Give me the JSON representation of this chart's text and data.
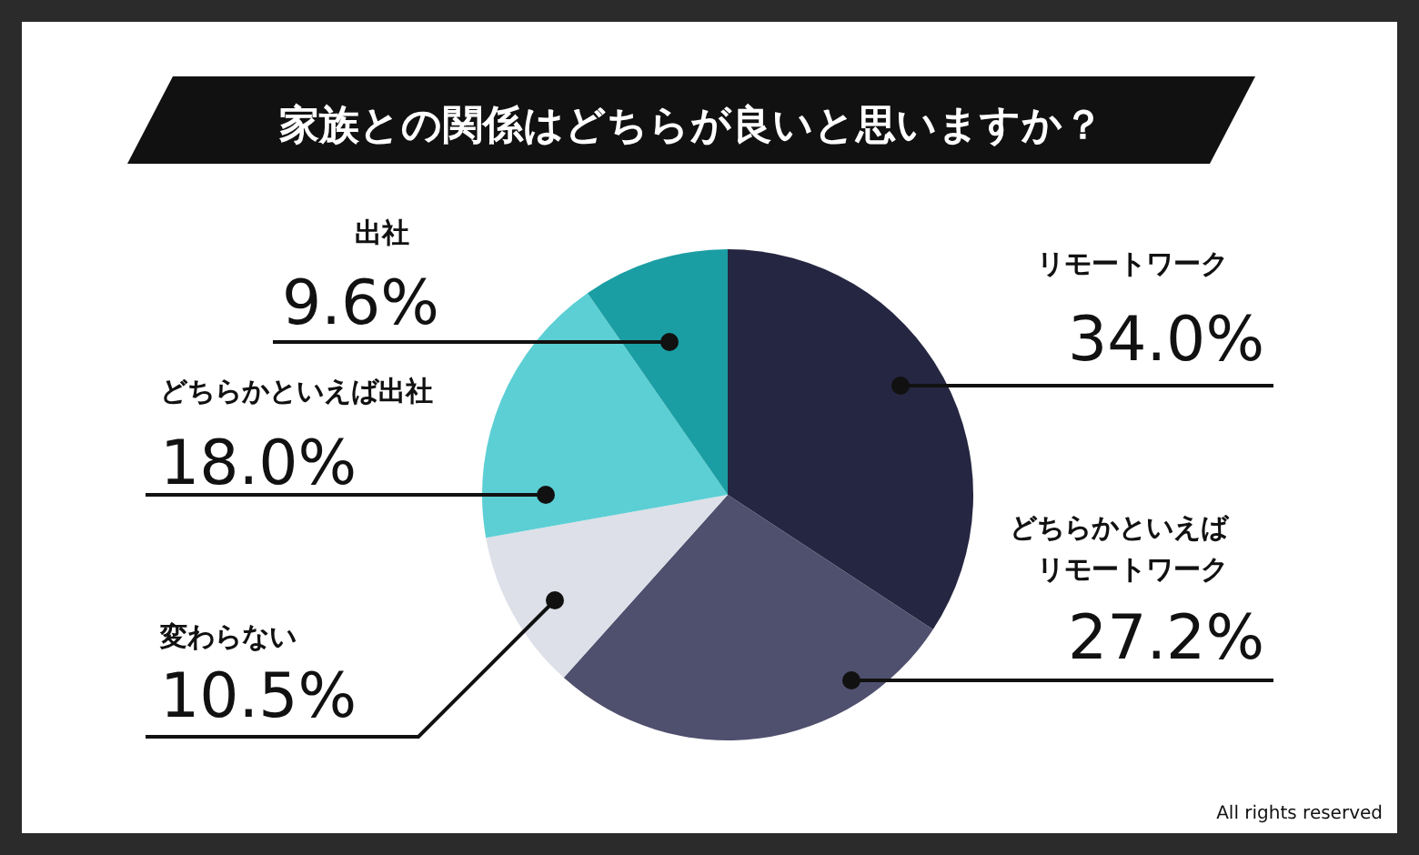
{
  "chart_data": {
    "type": "pie",
    "title": "家族との関係はどちらが良いと思いますか？",
    "categories": [
      "リモートワーク",
      "どちらかといえばリモートワーク",
      "変わらない",
      "どちらかといえば出社",
      "出社"
    ],
    "values": [
      34.0,
      27.2,
      10.5,
      18.0,
      9.6
    ],
    "colors": [
      "#252641",
      "#4f4f6e",
      "#dde0e8",
      "#5ccfd4",
      "#1a9ea3"
    ],
    "value_labels": [
      "34.0%",
      "27.2%",
      "10.5%",
      "18.0%",
      "9.6%"
    ],
    "annotations": [
      "All rights reserved"
    ]
  }
}
